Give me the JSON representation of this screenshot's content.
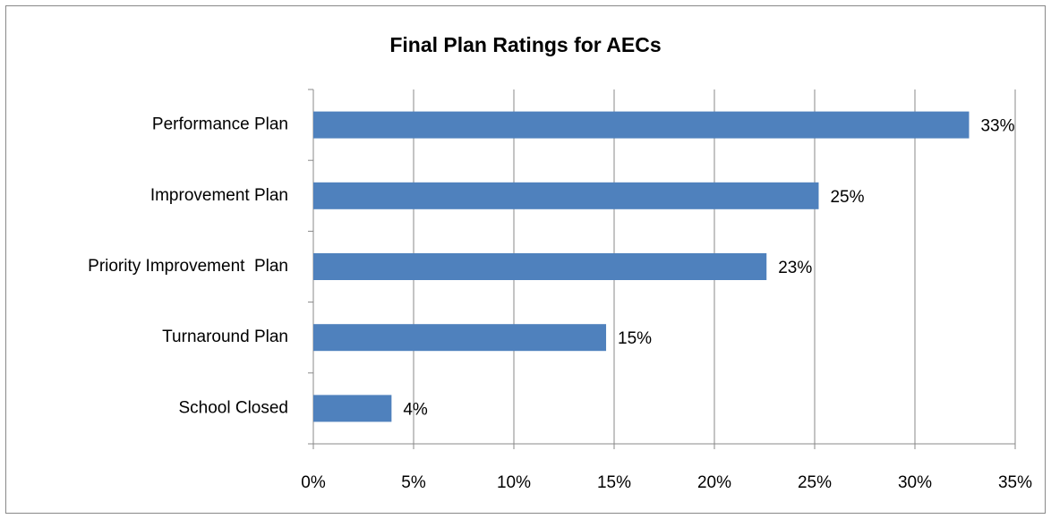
{
  "chart_data": {
    "type": "bar",
    "orientation": "horizontal",
    "title": "Final Plan Ratings for AECs",
    "categories": [
      "Performance Plan",
      "Improvement Plan",
      "Priority Improvement  Plan",
      "Turnaround Plan",
      "School Closed"
    ],
    "values": [
      32.7,
      25.2,
      22.6,
      14.6,
      3.9
    ],
    "value_labels": [
      "33%",
      "25%",
      "23%",
      "15%",
      "4%"
    ],
    "color": "#4f81bd",
    "xlim": [
      0,
      35
    ],
    "xticks": [
      {
        "value": 0,
        "label": "0%"
      },
      {
        "value": 5,
        "label": "5%"
      },
      {
        "value": 10,
        "label": "10%"
      },
      {
        "value": 15,
        "label": "15%"
      },
      {
        "value": 20,
        "label": "20%"
      },
      {
        "value": 25,
        "label": "25%"
      },
      {
        "value": 30,
        "label": "30%"
      },
      {
        "value": 35,
        "label": "35%"
      }
    ],
    "grid": true
  }
}
